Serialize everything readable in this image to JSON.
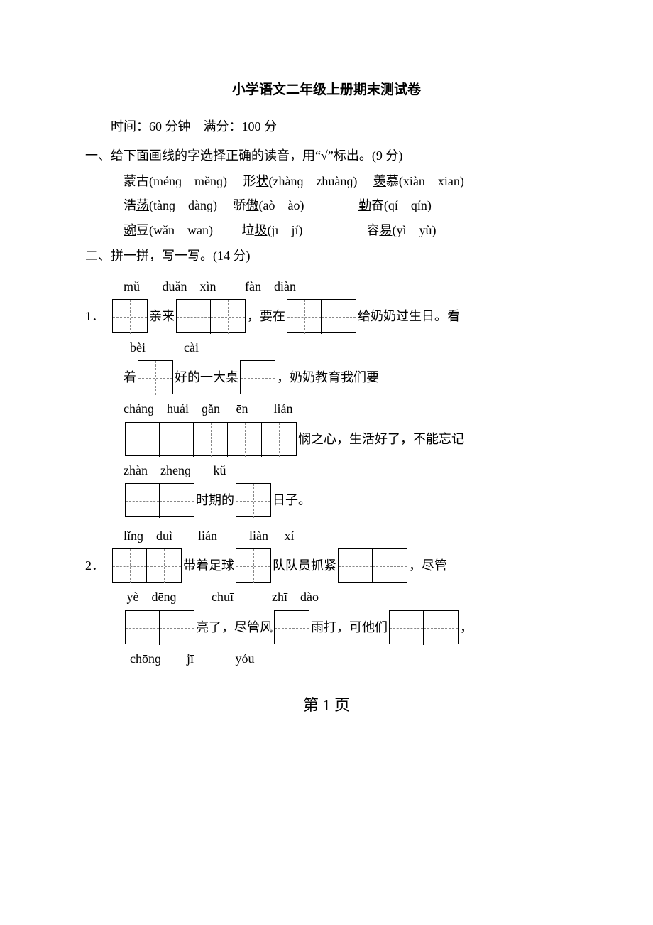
{
  "title": "小学语文二年级上册期末测试卷",
  "meta": "时间：60 分钟　满分：100 分",
  "q1": {
    "head": "一、给下面画线的字选择正确的读音，用“√”标出。(9 分)",
    "rows": [
      {
        "a_pre": "蒙",
        "a_u": "",
        "a_post": "古(ménɡ　měnɡ)",
        "b_pre": "形",
        "b_u": "状",
        "b_post": "(zhànɡ　zhuànɡ)",
        "c_pre": "",
        "c_u": "羡",
        "c_post": "慕(xiàn　xiān)"
      },
      {
        "a_pre": "浩",
        "a_u": "荡",
        "a_post": "(tànɡ　dànɡ)",
        "b_pre": "骄",
        "b_u": "傲",
        "b_post": "(aò　ào)",
        "c_pre": "",
        "c_u": "勤",
        "c_post": "奋(qí　qín)"
      },
      {
        "a_pre": "",
        "a_u": "豌",
        "a_post": "豆(wǎn　wān)",
        "b_pre": "垃",
        "b_u": "圾",
        "b_post": "(jī　jí)",
        "c_pre": "容",
        "c_u": "易",
        "c_post": "(yì　yù)"
      }
    ]
  },
  "q2": {
    "head": "二、拼一拼，写一写。(14 分)",
    "item1_num": "1．",
    "item2_num": "2．",
    "line1a_py": "mǔ       duǎn　xìn         fàn　diàn",
    "line1a_t1": "亲来",
    "line1a_t2": "，要在",
    "line1a_t3": "给奶奶过生日。看",
    "line1b_py": "  bèi            cài",
    "line1b_t0": "着",
    "line1b_t1": "好的一大桌",
    "line1b_t2": "，奶奶教育我们要",
    "line1c_py": "chánɡ　huái　ɡǎn　 ēn　　lián",
    "line1c_t1": "悯之心，生活好了，不能忘记",
    "line1d_py": "zhàn　zhēnɡ       kǔ",
    "line1d_t1": "时期的",
    "line1d_t2": "日子。",
    "line2a_py": "lǐnɡ　duì        lián          liàn　 xí",
    "line2a_t1": "带着足球",
    "line2a_t2": "队队员抓紧",
    "line2a_t3": "，尽管",
    "line2b_py": " yè　dēnɡ           chuī            zhī　dào",
    "line2b_t1": "亮了，尽管风",
    "line2b_t2": "雨打，可他们",
    "line2b_t3": "，",
    "line2c_py": "  chōnɡ　　jī             yóu"
  },
  "footer": "第 1 页"
}
